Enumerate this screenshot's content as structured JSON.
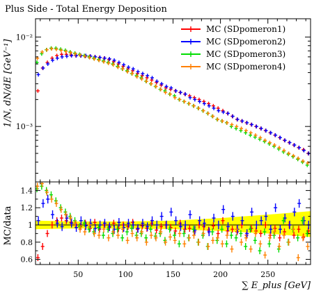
{
  "chart_data": {
    "type": "scatter",
    "title": "Plus Side - Total Energy Deposition",
    "xlabel": "∑ E_plus [GeV]",
    "ylabel": "1/N, dN/dE [GeV⁻¹]",
    "ratio_ylabel": "MC/data",
    "xlim": [
      5,
      295
    ],
    "ylim": [
      0.00024,
      0.016
    ],
    "yscale": "log",
    "ratio_ylim": [
      0.54,
      1.5
    ],
    "xticks": [
      50,
      100,
      150,
      200,
      250
    ],
    "xtick_labels": [
      "50",
      "100",
      "150",
      "200",
      "250"
    ],
    "yticks": [
      0.001,
      0.01
    ],
    "ytick_labels": [
      "10⁻³",
      "10⁻²"
    ],
    "ratio_yticks": [
      0.6,
      0.8,
      1.0,
      1.2,
      1.4
    ],
    "ratio_ytick_labels": [
      "0.6",
      "0.8",
      "1",
      "1.2",
      "1.4"
    ],
    "legend_position": "top-right",
    "grid": false,
    "data_band": {
      "x": [
        5,
        50,
        100,
        150,
        200,
        250,
        295
      ],
      "lo": [
        0.95,
        0.96,
        0.96,
        0.95,
        0.93,
        0.9,
        0.86
      ],
      "hi": [
        1.05,
        1.04,
        1.04,
        1.05,
        1.08,
        1.12,
        1.16
      ]
    },
    "series": [
      {
        "name": "MC (SDpomeron1)",
        "color": "#ff0000",
        "x": [
          7.5,
          12.5,
          17.5,
          22.5,
          27.5,
          32.5,
          37.5,
          42.5,
          47.5,
          52.5,
          57.5,
          62.5,
          67.5,
          72.5,
          77.5,
          82.5,
          87.5,
          92.5,
          97.5,
          102.5,
          107.5,
          112.5,
          117.5,
          122.5,
          127.5,
          132.5,
          137.5,
          142.5,
          147.5,
          152.5,
          157.5,
          162.5,
          167.5,
          172.5,
          177.5,
          182.5,
          187.5,
          192.5,
          197.5,
          202.5,
          207.5,
          212.5,
          217.5,
          222.5,
          227.5,
          232.5,
          237.5,
          242.5,
          247.5,
          252.5,
          257.5,
          262.5,
          267.5,
          272.5,
          277.5,
          282.5,
          287.5,
          292.5
        ],
        "y": [
          0.0025,
          0.0045,
          0.0052,
          0.0058,
          0.0062,
          0.0064,
          0.0064,
          0.0063,
          0.0062,
          0.0062,
          0.0061,
          0.0061,
          0.006,
          0.0059,
          0.0058,
          0.0056,
          0.0053,
          0.005,
          0.0047,
          0.0044,
          0.0042,
          0.0039,
          0.0037,
          0.0035,
          0.0033,
          0.0031,
          0.0029,
          0.0027,
          0.0026,
          0.0025,
          0.0024,
          0.0023,
          0.0022,
          0.0021,
          0.002,
          0.0019,
          0.0018,
          0.0017,
          0.0016,
          0.0015,
          0.0014,
          0.0013,
          0.0012,
          0.00115,
          0.0011,
          0.00105,
          0.001,
          0.00095,
          0.0009,
          0.00085,
          0.0008,
          0.00075,
          0.0007,
          0.00066,
          0.00062,
          0.00058,
          0.00055,
          0.0005
        ],
        "ratio": [
          0.62,
          0.75,
          0.9,
          1.0,
          1.05,
          1.08,
          1.05,
          1.03,
          1.0,
          0.98,
          1.02,
          0.96,
          1.03,
          0.95,
          1.0,
          0.97,
          1.02,
          0.96,
          1.0,
          0.98,
          1.03,
          0.95,
          0.99,
          0.96,
          1.02,
          0.94,
          0.98,
          1.0,
          0.97,
          0.93,
          1.02,
          0.95,
          0.96,
          0.92,
          1.0,
          0.98,
          0.94,
          0.99,
          0.9,
          1.05,
          0.93,
          0.95,
          0.92,
          1.0,
          0.88,
          0.96,
          0.93,
          0.9,
          1.0,
          0.88,
          0.96,
          0.85,
          0.92,
          1.0,
          0.88,
          0.95,
          0.86,
          0.93
        ],
        "yerr": 0.05,
        "rerr": 0.04
      },
      {
        "name": "MC (SDpomeron2)",
        "color": "#0000ff",
        "x": [
          8,
          13,
          18,
          23,
          28,
          33,
          38,
          43,
          48,
          53,
          58,
          63,
          68,
          73,
          78,
          83,
          88,
          93,
          98,
          103,
          108,
          113,
          118,
          123,
          128,
          133,
          138,
          143,
          148,
          153,
          158,
          163,
          168,
          173,
          178,
          183,
          188,
          193,
          198,
          203,
          208,
          213,
          218,
          223,
          228,
          233,
          238,
          243,
          248,
          253,
          258,
          263,
          268,
          273,
          278,
          283,
          288,
          293
        ],
        "y": [
          0.0038,
          0.0045,
          0.005,
          0.0055,
          0.0058,
          0.006,
          0.0061,
          0.0062,
          0.0062,
          0.0062,
          0.0062,
          0.0061,
          0.006,
          0.0059,
          0.0058,
          0.0057,
          0.0055,
          0.0052,
          0.0049,
          0.0046,
          0.0044,
          0.0041,
          0.0039,
          0.0037,
          0.0035,
          0.0032,
          0.003,
          0.0028,
          0.0027,
          0.0025,
          0.0024,
          0.0023,
          0.0021,
          0.002,
          0.0019,
          0.0018,
          0.0017,
          0.0016,
          0.0015,
          0.00145,
          0.0014,
          0.0013,
          0.0012,
          0.00115,
          0.0011,
          0.00105,
          0.001,
          0.00095,
          0.0009,
          0.00085,
          0.0008,
          0.00075,
          0.0007,
          0.00066,
          0.00062,
          0.00058,
          0.00054,
          0.0005
        ],
        "ratio": [
          1.05,
          1.25,
          1.3,
          1.12,
          1.02,
          0.98,
          1.08,
          1.02,
          0.97,
          1.05,
          0.99,
          1.02,
          0.96,
          1.0,
          1.02,
          0.98,
          0.95,
          1.03,
          0.97,
          1.02,
          1.0,
          0.96,
          1.02,
          0.98,
          1.05,
          1.0,
          1.1,
          1.0,
          1.15,
          1.05,
          0.98,
          1.0,
          1.12,
          0.94,
          1.05,
          1.02,
          0.92,
          1.08,
          1.0,
          1.18,
          0.98,
          1.1,
          0.95,
          1.05,
          0.9,
          1.15,
          1.0,
          1.05,
          1.1,
          0.95,
          1.2,
          0.95,
          1.08,
          1.0,
          1.15,
          1.25,
          1.05,
          1.0
        ],
        "yerr": 0.05,
        "rerr": 0.05
      },
      {
        "name": "MC (SDpomeron3)",
        "color": "#00dd00",
        "x": [
          6.5,
          11.5,
          16.5,
          21.5,
          26.5,
          31.5,
          36.5,
          41.5,
          46.5,
          51.5,
          56.5,
          61.5,
          66.5,
          71.5,
          76.5,
          81.5,
          86.5,
          91.5,
          96.5,
          101.5,
          106.5,
          111.5,
          116.5,
          121.5,
          126.5,
          131.5,
          136.5,
          141.5,
          146.5,
          151.5,
          156.5,
          161.5,
          166.5,
          171.5,
          176.5,
          181.5,
          186.5,
          191.5,
          196.5,
          201.5,
          206.5,
          211.5,
          216.5,
          221.5,
          226.5,
          231.5,
          236.5,
          241.5,
          246.5,
          251.5,
          256.5,
          261.5,
          266.5,
          271.5,
          276.5,
          281.5,
          286.5,
          291.5
        ],
        "y": [
          0.0052,
          0.0065,
          0.0072,
          0.0075,
          0.0075,
          0.0073,
          0.0071,
          0.0068,
          0.0066,
          0.0064,
          0.0062,
          0.006,
          0.0058,
          0.0056,
          0.0054,
          0.0052,
          0.005,
          0.0047,
          0.0044,
          0.0042,
          0.0039,
          0.0037,
          0.0035,
          0.0032,
          0.003,
          0.0028,
          0.0026,
          0.0025,
          0.0023,
          0.0022,
          0.002,
          0.0019,
          0.0018,
          0.0017,
          0.0016,
          0.0015,
          0.0014,
          0.0013,
          0.0012,
          0.00115,
          0.0011,
          0.001,
          0.00095,
          0.0009,
          0.00085,
          0.0008,
          0.00076,
          0.00072,
          0.00068,
          0.00064,
          0.0006,
          0.00056,
          0.00052,
          0.00049,
          0.00046,
          0.00043,
          0.0004,
          0.00037
        ],
        "ratio": [
          1.42,
          1.45,
          1.4,
          1.35,
          1.28,
          1.2,
          1.15,
          1.1,
          1.05,
          0.98,
          1.02,
          0.95,
          0.92,
          0.97,
          0.88,
          0.95,
          0.9,
          0.95,
          0.85,
          0.92,
          0.96,
          0.88,
          0.9,
          0.85,
          0.95,
          0.87,
          0.9,
          0.82,
          0.95,
          0.88,
          0.78,
          0.9,
          0.85,
          0.95,
          0.8,
          0.88,
          0.75,
          0.92,
          0.82,
          0.95,
          0.78,
          0.88,
          0.85,
          0.9,
          0.75,
          0.95,
          0.82,
          0.7,
          0.92,
          0.78,
          0.88,
          0.72,
          1.05,
          0.8,
          0.95,
          0.85,
          1.05,
          0.9
        ],
        "yerr": 0.05,
        "rerr": 0.04
      },
      {
        "name": "MC (SDpomeron4)",
        "color": "#ff8000",
        "x": [
          7,
          12,
          17,
          22,
          27,
          32,
          37,
          42,
          47,
          52,
          57,
          62,
          67,
          72,
          77,
          82,
          87,
          92,
          97,
          102,
          107,
          112,
          117,
          122,
          127,
          132,
          137,
          142,
          147,
          152,
          157,
          162,
          167,
          172,
          177,
          182,
          187,
          192,
          197,
          202,
          207,
          212,
          217,
          222,
          227,
          232,
          237,
          242,
          247,
          252,
          257,
          262,
          267,
          272,
          277,
          282,
          287,
          292
        ],
        "y": [
          0.0058,
          0.0068,
          0.0072,
          0.0074,
          0.0073,
          0.0071,
          0.0069,
          0.0067,
          0.0065,
          0.0063,
          0.0061,
          0.0059,
          0.0057,
          0.0055,
          0.0053,
          0.0051,
          0.0049,
          0.0046,
          0.0044,
          0.0041,
          0.0039,
          0.0036,
          0.0034,
          0.0032,
          0.003,
          0.0028,
          0.0026,
          0.0024,
          0.0023,
          0.0021,
          0.002,
          0.0019,
          0.0018,
          0.0017,
          0.0016,
          0.0015,
          0.0014,
          0.0013,
          0.0012,
          0.00115,
          0.0011,
          0.00105,
          0.001,
          0.00095,
          0.0009,
          0.00085,
          0.0008,
          0.00075,
          0.0007,
          0.00066,
          0.00062,
          0.00058,
          0.00054,
          0.0005,
          0.00047,
          0.00044,
          0.00041,
          0.00039
        ],
        "ratio": [
          1.45,
          1.48,
          1.38,
          1.3,
          1.25,
          1.18,
          1.12,
          1.08,
          1.02,
          0.95,
          0.92,
          1.0,
          0.9,
          0.88,
          0.95,
          0.85,
          0.92,
          0.88,
          0.95,
          0.82,
          0.9,
          0.85,
          0.92,
          0.8,
          0.88,
          0.85,
          0.92,
          0.8,
          0.86,
          0.82,
          0.9,
          0.78,
          0.85,
          0.88,
          0.8,
          0.9,
          0.75,
          0.82,
          0.85,
          0.78,
          0.88,
          0.72,
          0.95,
          0.8,
          0.85,
          0.72,
          0.9,
          0.78,
          0.65,
          0.85,
          0.92,
          0.75,
          0.88,
          0.8,
          0.95,
          0.62,
          0.85,
          0.75
        ],
        "yerr": 0.05,
        "rerr": 0.04
      }
    ]
  }
}
